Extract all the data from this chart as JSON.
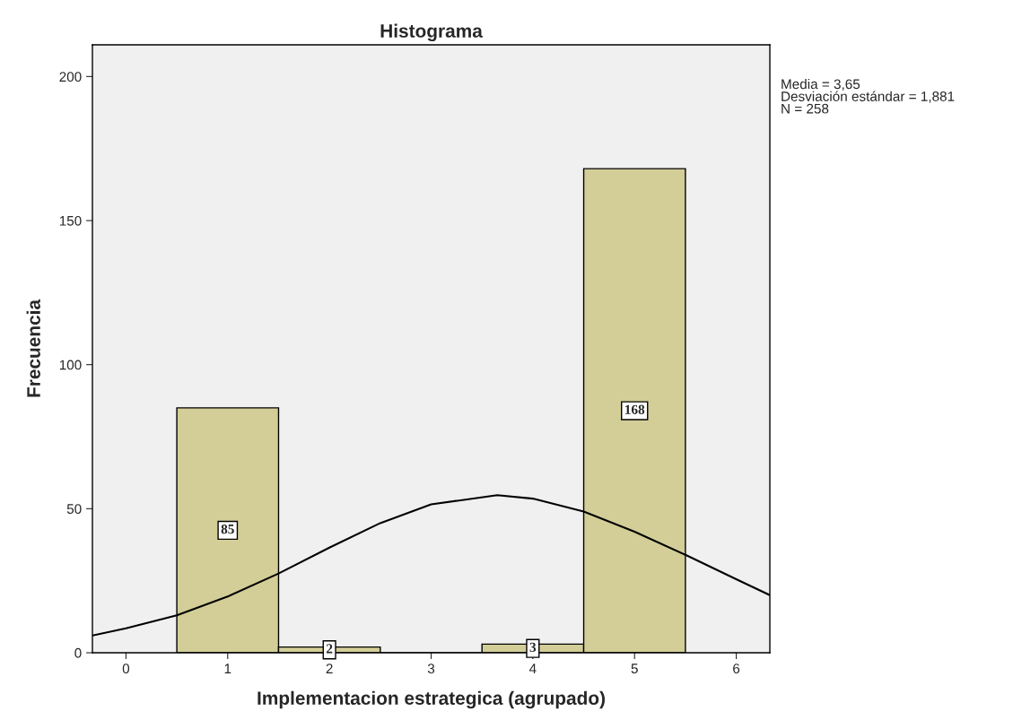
{
  "chart_data": {
    "type": "histogram",
    "title": "Histograma",
    "xlabel": "Implementacion estrategica (agrupado)",
    "ylabel": "Frecuencia",
    "bins": [
      0.5,
      1.5,
      2.5,
      3.5,
      4.5,
      5.5
    ],
    "series": [
      {
        "color": "#d3ce97",
        "values": [
          85,
          2,
          0,
          3,
          168
        ],
        "value_labels": [
          "85",
          "2",
          null,
          "3",
          "168"
        ]
      },
      {
        "type": "line",
        "color": "#000000",
        "x": [
          -0.33,
          0,
          0.5,
          1,
          1.5,
          2,
          2.5,
          3,
          3.65,
          4,
          4.5,
          5,
          5.5,
          6,
          6.33
        ],
        "values": [
          6,
          8.5,
          13,
          19.5,
          27.5,
          36.5,
          45,
          51.5,
          54.7,
          53.5,
          49,
          42,
          34,
          25.5,
          20
        ]
      }
    ],
    "xlim": [
      -0.33,
      6.33
    ],
    "ylim": [
      0,
      211
    ],
    "xticks": [
      0,
      1,
      2,
      3,
      4,
      5,
      6
    ],
    "yticks": [
      0,
      50,
      100,
      150,
      200
    ],
    "grid": false,
    "legend": false,
    "annotations": [
      "Media = 3,65",
      "Desviación estándar = 1,881",
      "N = 258"
    ]
  }
}
